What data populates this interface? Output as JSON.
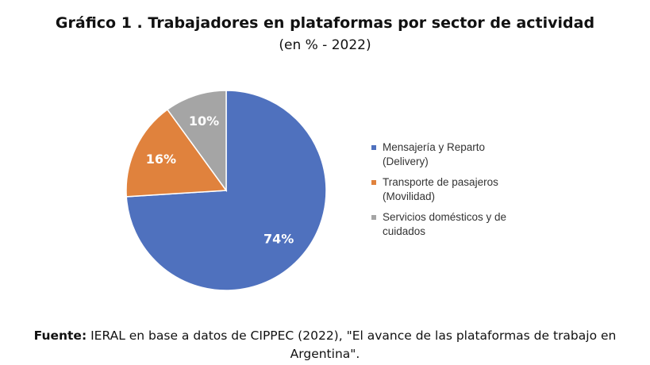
{
  "chart_data": {
    "type": "pie",
    "title": "Gráfico 1 . Trabajadores en plataformas por sector de actividad",
    "subtitle": "(en % - 2022)",
    "categories": [
      "Mensajería y Reparto (Delivery)",
      "Transporte de pasajeros (Movilidad)",
      "Servicios domésticos y de cuidados"
    ],
    "values": [
      74,
      16,
      10
    ],
    "value_labels": [
      "74%",
      "16%",
      "10%"
    ],
    "colors": [
      "#4f71be",
      "#e0823d",
      "#a5a5a5"
    ],
    "legend": "right"
  },
  "footer": {
    "label": "Fuente:",
    "text": "IERAL en base a datos de CIPPEC (2022), \"El avance de las plataformas de trabajo en Argentina\"."
  }
}
